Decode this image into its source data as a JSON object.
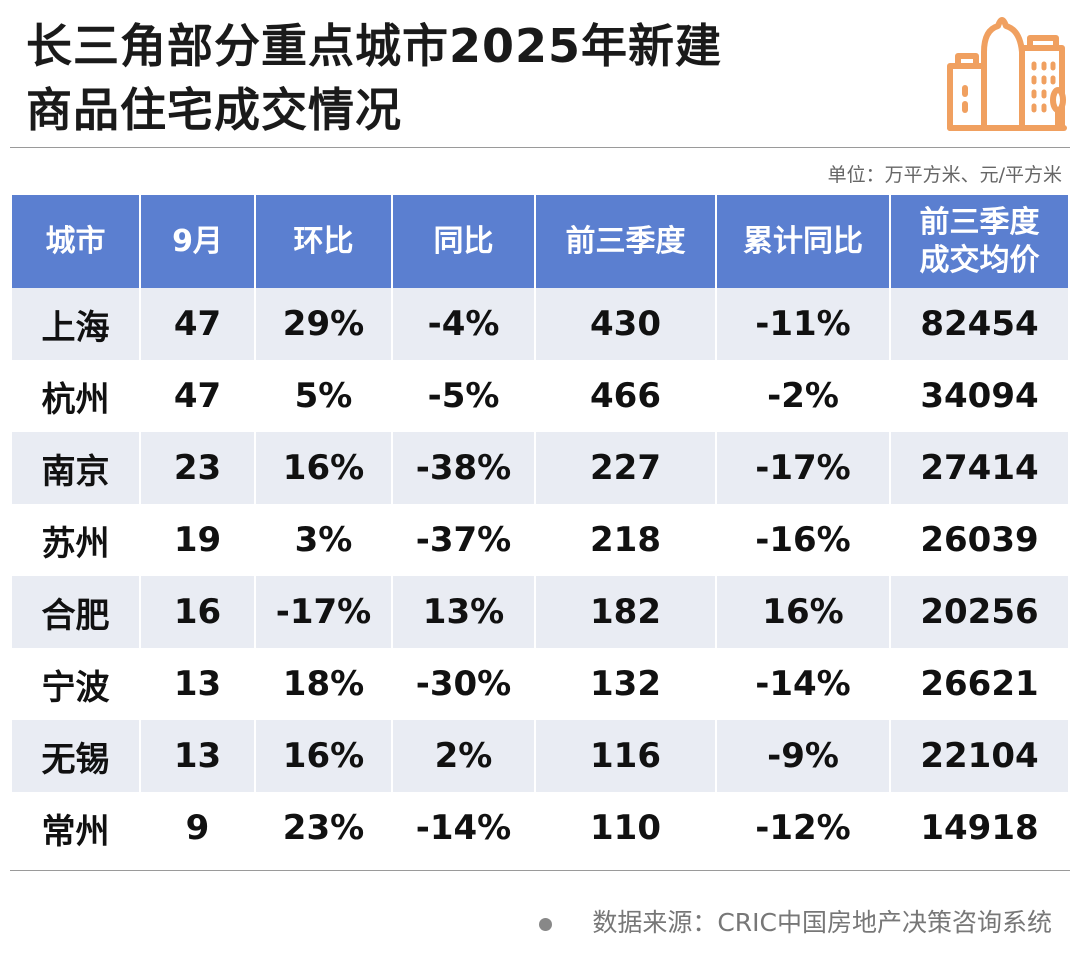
{
  "title_line1": "长三角部分重点城市2025年新建",
  "title_line2": "商品住宅成交情况",
  "unit": "单位：万平方米、元/平方米",
  "colors": {
    "header": "#5b7fd0",
    "stripe": "#e9ecf3",
    "icon": "#f0a060"
  },
  "table": {
    "headers": [
      "城市",
      "9月",
      "环比",
      "同比",
      "前三季度",
      "累计同比",
      "前三季度\n成交均价"
    ],
    "header_last_line1": "前三季度",
    "header_last_line2": "成交均价",
    "rows": [
      [
        "上海",
        "47",
        "29%",
        "-4%",
        "430",
        "-11%",
        "82454"
      ],
      [
        "杭州",
        "47",
        "5%",
        "-5%",
        "466",
        "-2%",
        "34094"
      ],
      [
        "南京",
        "23",
        "16%",
        "-38%",
        "227",
        "-17%",
        "27414"
      ],
      [
        "苏州",
        "19",
        "3%",
        "-37%",
        "218",
        "-16%",
        "26039"
      ],
      [
        "合肥",
        "16",
        "-17%",
        "13%",
        "182",
        "16%",
        "20256"
      ],
      [
        "宁波",
        "13",
        "18%",
        "-30%",
        "132",
        "-14%",
        "26621"
      ],
      [
        "无锡",
        "13",
        "16%",
        "2%",
        "116",
        "-9%",
        "22104"
      ],
      [
        "常州",
        "9",
        "23%",
        "-14%",
        "110",
        "-12%",
        "14918"
      ]
    ]
  },
  "source": "数据来源：CRIC中国房地产决策咨询系统"
}
